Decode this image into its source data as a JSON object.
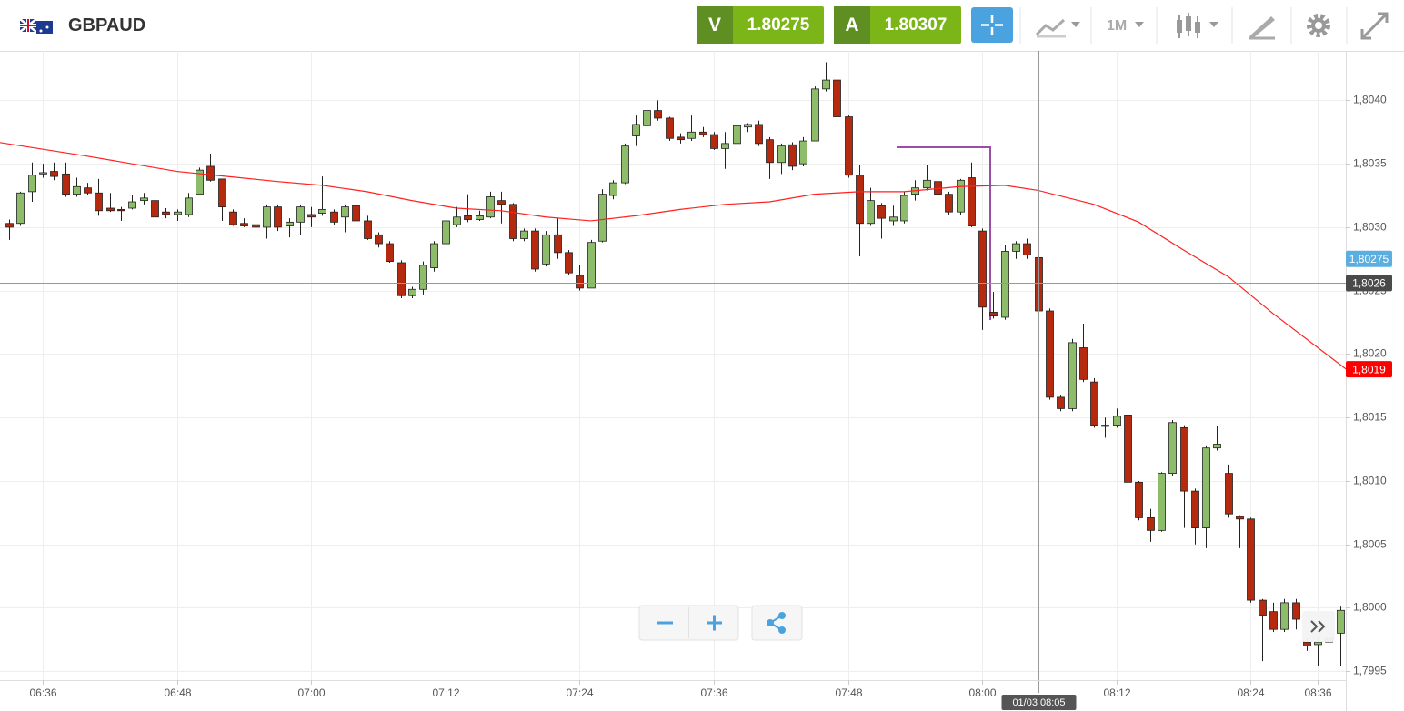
{
  "header": {
    "symbol": "GBPAUD",
    "sell_label": "V",
    "sell_price": "1.80275",
    "buy_label": "A",
    "buy_price": "1.80307",
    "timeframe": "1M"
  },
  "chart_data": {
    "type": "candlestick",
    "categories": [
      null,
      null,
      null,
      "06:36",
      null,
      null,
      null,
      null,
      null,
      null,
      null,
      null,
      null,
      null,
      null,
      "06:48",
      null,
      null,
      null,
      null,
      null,
      null,
      null,
      null,
      null,
      null,
      null,
      "07:00",
      null,
      null,
      null,
      null,
      null,
      null,
      null,
      null,
      null,
      null,
      null,
      "07:12",
      null,
      null,
      null,
      null,
      null,
      null,
      null,
      null,
      null,
      null,
      null,
      "07:24",
      null,
      null,
      null,
      null,
      null,
      null,
      null,
      null,
      null,
      null,
      null,
      "07:36",
      null,
      null,
      null,
      null,
      null,
      null,
      null,
      null,
      null,
      null,
      null,
      "07:48",
      null,
      null,
      null,
      null,
      null,
      null,
      null,
      null,
      null,
      null,
      null,
      "08:00",
      null,
      null,
      null,
      null,
      null,
      null,
      null,
      null,
      null,
      null,
      null,
      "08:12",
      null,
      null,
      null,
      null,
      null,
      null,
      null,
      null,
      null,
      null,
      null,
      "08:24",
      null,
      null,
      null,
      null,
      null,
      "08:36",
      null,
      null
    ],
    "open": [
      1.80303,
      1.80303,
      1.80328,
      1.80342,
      1.80344,
      1.80342,
      1.80326,
      1.80331,
      1.80327,
      1.80315,
      1.80314,
      1.80315,
      1.80321,
      1.80321,
      1.80312,
      1.8031,
      1.8031,
      1.80326,
      1.80348,
      1.80338,
      1.80312,
      1.80303,
      1.80302,
      1.803,
      1.80316,
      1.80301,
      1.80304,
      1.8031,
      1.80311,
      1.80312,
      1.80308,
      1.80317,
      1.80305,
      1.80294,
      1.80287,
      1.80272,
      1.80246,
      1.80251,
      1.80268,
      1.80287,
      1.80302,
      1.80309,
      1.80306,
      1.80308,
      1.80321,
      1.80318,
      1.80291,
      1.80297,
      1.80271,
      1.80294,
      1.8028,
      1.80262,
      1.80252,
      1.80289,
      1.80325,
      1.80335,
      1.80372,
      1.8038,
      1.80392,
      1.80386,
      1.80371,
      1.8037,
      1.80375,
      1.80373,
      1.80362,
      1.80366,
      1.80379,
      1.80381,
      1.80369,
      1.80351,
      1.80365,
      1.8035,
      1.80368,
      1.80409,
      1.80416,
      1.80387,
      1.80341,
      1.80303,
      1.80317,
      1.80305,
      1.80305,
      1.80326,
      1.80331,
      1.80336,
      1.80326,
      1.80312,
      1.80339,
      1.80297,
      1.80233,
      1.80229,
      1.80281,
      1.80287,
      1.80276,
      1.80234,
      1.80166,
      1.80157,
      1.80205,
      1.80178,
      1.80144,
      1.80144,
      1.80152,
      1.80099,
      1.80071,
      1.80061,
      1.80106,
      1.80142,
      1.80092,
      1.80063,
      1.80126,
      1.80106,
      1.80072,
      1.8007,
      1.80006,
      1.79997,
      1.79983,
      1.80004,
      1.79973,
      1.79971,
      1.79973,
      1.7998
    ],
    "high": [
      1.80306,
      1.80328,
      1.80351,
      1.8035,
      1.80351,
      1.80351,
      1.80339,
      1.80335,
      1.80338,
      1.80327,
      1.80316,
      1.80325,
      1.80327,
      1.80323,
      1.80315,
      1.80314,
      1.80327,
      1.80347,
      1.80358,
      1.80338,
      1.80314,
      1.80307,
      1.80303,
      1.80318,
      1.80318,
      1.80307,
      1.80318,
      1.80316,
      1.8034,
      1.80314,
      1.80318,
      1.8032,
      1.80309,
      1.80296,
      1.80289,
      1.80274,
      1.80253,
      1.80273,
      1.80289,
      1.80307,
      1.80316,
      1.80326,
      1.80313,
      1.80328,
      1.80328,
      1.80319,
      1.80299,
      1.80299,
      1.80297,
      1.80307,
      1.80282,
      1.8027,
      1.8029,
      1.8033,
      1.80337,
      1.80366,
      1.80388,
      1.80399,
      1.804,
      1.80387,
      1.80374,
      1.80388,
      1.80379,
      1.80375,
      1.80375,
      1.80382,
      1.80382,
      1.80384,
      1.80371,
      1.80366,
      1.80367,
      1.80371,
      1.80411,
      1.8043,
      1.80416,
      1.80388,
      1.80349,
      1.80331,
      1.80319,
      1.80317,
      1.80328,
      1.80337,
      1.80349,
      1.80338,
      1.80328,
      1.80338,
      1.80351,
      1.80299,
      1.80249,
      1.80286,
      1.80289,
      1.80291,
      1.80297,
      1.80236,
      1.80168,
      1.80212,
      1.80224,
      1.80181,
      1.8015,
      1.80157,
      1.80157,
      1.801,
      1.80078,
      1.80107,
      1.80148,
      1.80144,
      1.80094,
      1.80128,
      1.80143,
      1.80113,
      1.80073,
      1.80071,
      1.80007,
      1.80004,
      1.80007,
      1.80007,
      1.79976,
      1.79977,
      1.80001,
      1.80001
    ],
    "low": [
      1.8029,
      1.80301,
      1.8032,
      1.80339,
      1.80337,
      1.80324,
      1.80324,
      1.80325,
      1.80309,
      1.80312,
      1.80305,
      1.80314,
      1.80318,
      1.803,
      1.80307,
      1.80305,
      1.80308,
      1.80325,
      1.80336,
      1.80305,
      1.80301,
      1.803,
      1.80284,
      1.80291,
      1.80297,
      1.80292,
      1.80294,
      1.803,
      1.80309,
      1.80302,
      1.80296,
      1.80303,
      1.8029,
      1.80284,
      1.80272,
      1.80244,
      1.80244,
      1.80247,
      1.80265,
      1.80285,
      1.803,
      1.80304,
      1.80305,
      1.80307,
      1.80303,
      1.80289,
      1.80289,
      1.80265,
      1.80269,
      1.80275,
      1.80262,
      1.8025,
      1.80252,
      1.80288,
      1.80322,
      1.80334,
      1.80364,
      1.80378,
      1.80384,
      1.80368,
      1.80366,
      1.80368,
      1.80371,
      1.80361,
      1.80346,
      1.80361,
      1.80375,
      1.80364,
      1.80338,
      1.80342,
      1.80345,
      1.80348,
      1.80368,
      1.80407,
      1.80386,
      1.80339,
      1.80277,
      1.80301,
      1.80291,
      1.80301,
      1.80303,
      1.80321,
      1.80329,
      1.80324,
      1.8031,
      1.8031,
      1.803,
      1.80219,
      1.80228,
      1.80227,
      1.80275,
      1.80275,
      1.80232,
      1.80164,
      1.80155,
      1.80155,
      1.80178,
      1.80142,
      1.80134,
      1.80142,
      1.80098,
      1.80069,
      1.80052,
      1.8006,
      1.80104,
      1.80063,
      1.8005,
      1.80047,
      1.80124,
      1.80071,
      1.80047,
      1.80004,
      1.79958,
      1.79981,
      1.79981,
      1.79983,
      1.79966,
      1.79954,
      1.7997,
      1.79954
    ],
    "close": [
      1.803,
      1.80327,
      1.80341,
      1.80343,
      1.8034,
      1.80326,
      1.80332,
      1.80327,
      1.80313,
      1.80313,
      1.80313,
      1.8032,
      1.80323,
      1.80308,
      1.8031,
      1.80312,
      1.80323,
      1.80345,
      1.80337,
      1.80316,
      1.80302,
      1.80301,
      1.803,
      1.80316,
      1.803,
      1.80304,
      1.80316,
      1.80308,
      1.80314,
      1.80304,
      1.80316,
      1.80305,
      1.80291,
      1.80287,
      1.80273,
      1.80246,
      1.80251,
      1.8027,
      1.80287,
      1.80305,
      1.80308,
      1.80306,
      1.80309,
      1.80324,
      1.80318,
      1.80291,
      1.80297,
      1.80267,
      1.80294,
      1.8028,
      1.80264,
      1.80252,
      1.80288,
      1.80326,
      1.80335,
      1.80364,
      1.80381,
      1.80392,
      1.80386,
      1.8037,
      1.80369,
      1.80375,
      1.80373,
      1.80362,
      1.80366,
      1.8038,
      1.80381,
      1.80366,
      1.80351,
      1.80364,
      1.80348,
      1.80368,
      1.80409,
      1.80416,
      1.80387,
      1.80341,
      1.80303,
      1.80321,
      1.80307,
      1.80308,
      1.80325,
      1.80331,
      1.80337,
      1.80326,
      1.80312,
      1.80337,
      1.80301,
      1.80237,
      1.8023,
      1.80281,
      1.80287,
      1.80278,
      1.80234,
      1.80166,
      1.80157,
      1.80209,
      1.8018,
      1.80144,
      1.80143,
      1.80151,
      1.80099,
      1.80071,
      1.80061,
      1.80106,
      1.80146,
      1.80092,
      1.80063,
      1.80126,
      1.80129,
      1.80074,
      1.8007,
      1.80006,
      1.79994,
      1.79983,
      1.80004,
      1.79991,
      1.7997,
      1.79973,
      1.79976,
      1.79998
    ],
    "up_color": "#8dbd6b",
    "down_color": "#b5290f",
    "series": [
      {
        "color": "#ff2020",
        "x": [
          -1,
          7,
          15,
          24,
          28,
          32,
          36,
          40,
          44,
          48,
          52,
          56,
          60,
          64,
          68,
          72,
          76,
          80,
          85,
          89,
          92,
          97,
          101,
          105,
          109,
          113,
          120
        ],
        "values": [
          1.80367,
          1.80356,
          1.80344,
          1.80336,
          1.80333,
          1.80328,
          1.80321,
          1.80315,
          1.80313,
          1.80308,
          1.80305,
          1.80309,
          1.80314,
          1.80318,
          1.8032,
          1.80326,
          1.80328,
          1.80328,
          1.80332,
          1.80333,
          1.80329,
          1.80318,
          1.80304,
          1.80282,
          1.80261,
          1.80232,
          1.80185
        ]
      }
    ],
    "ylim": [
      1.79943,
      1.80439
    ],
    "yticks": [
      {
        "value": 1.7995,
        "label": "1,7995"
      },
      {
        "value": 1.8,
        "label": "1,8000"
      },
      {
        "value": 1.8005,
        "label": "1,8005"
      },
      {
        "value": 1.801,
        "label": "1,8010"
      },
      {
        "value": 1.8015,
        "label": "1,8015"
      },
      {
        "value": 1.802,
        "label": "1,8020"
      },
      {
        "value": 1.8025,
        "label": "1,8025"
      },
      {
        "value": 1.803,
        "label": "1,8030"
      },
      {
        "value": 1.8035,
        "label": "1,8035"
      },
      {
        "value": 1.804,
        "label": "1,8040"
      }
    ],
    "grid": true,
    "last_price": {
      "value": 1.80275,
      "label": "1,80275",
      "color": "#5aafe0"
    },
    "ma_last": {
      "value": 1.80188,
      "label": "1,8019",
      "color": "#ff0000"
    },
    "crosshair": {
      "value": 1.80256,
      "label": "1,8026",
      "x": 92,
      "time": "01/03 08:05"
    }
  }
}
